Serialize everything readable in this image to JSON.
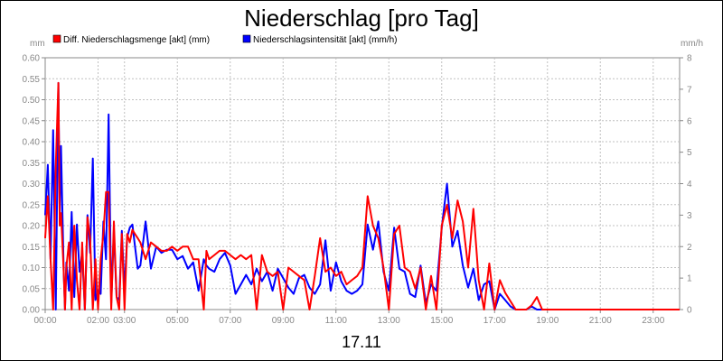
{
  "chart_data": {
    "type": "line",
    "title": "Niederschlag [pro Tag]",
    "date_label": "17.11",
    "left_unit": "mm",
    "right_unit": "mm/h",
    "ylim_left": [
      0,
      0.6
    ],
    "ylim_right": [
      0,
      8
    ],
    "left_ticks": [
      "0.00",
      "0.05",
      "0.10",
      "0.15",
      "0.20",
      "0.25",
      "0.30",
      "0.35",
      "0.40",
      "0.45",
      "0.50",
      "0.55",
      "0.60"
    ],
    "right_ticks": [
      "0",
      "1",
      "2",
      "3",
      "4",
      "5",
      "6",
      "7",
      "8"
    ],
    "x_ticks": [
      "00:00",
      "02:00",
      "03:00",
      "05:00",
      "07:00",
      "09:00",
      "11:00",
      "13:00",
      "15:00",
      "17:00",
      "19:00",
      "21:00",
      "23:00"
    ],
    "x_tick_hours": [
      0,
      2,
      3,
      5,
      7,
      9,
      11,
      13,
      15,
      17,
      19,
      21,
      23
    ],
    "xlim_hours": [
      0,
      24
    ],
    "grid": true,
    "legend_position": "top-left",
    "colors": {
      "diff": "#ff0000",
      "intensity": "#0000ff",
      "grid": "#c0c0c0",
      "axis": "#888888"
    },
    "series": [
      {
        "name": "Diff. Niederschlagsmenge [akt] (mm)",
        "axis": "left",
        "x_hours": [
          0.0,
          0.1,
          0.2,
          0.3,
          0.4,
          0.5,
          0.55,
          0.6,
          0.7,
          0.75,
          0.8,
          0.9,
          1.0,
          1.1,
          1.2,
          1.3,
          1.4,
          1.5,
          1.6,
          1.7,
          1.8,
          1.9,
          2.0,
          2.1,
          2.2,
          2.3,
          2.4,
          2.5,
          2.6,
          2.7,
          2.8,
          2.9,
          3.0,
          3.1,
          3.2,
          3.3,
          3.4,
          3.5,
          3.6,
          3.8,
          4.0,
          4.2,
          4.4,
          4.6,
          4.8,
          5.0,
          5.2,
          5.4,
          5.6,
          5.8,
          6.0,
          6.1,
          6.2,
          6.4,
          6.6,
          6.8,
          7.0,
          7.2,
          7.4,
          7.6,
          7.8,
          8.0,
          8.2,
          8.4,
          8.6,
          8.8,
          9.0,
          9.2,
          9.4,
          9.6,
          9.8,
          10.0,
          10.2,
          10.4,
          10.6,
          10.8,
          11.0,
          11.2,
          11.4,
          11.6,
          11.8,
          12.0,
          12.2,
          12.4,
          12.6,
          12.8,
          13.0,
          13.2,
          13.4,
          13.6,
          13.8,
          14.0,
          14.2,
          14.4,
          14.6,
          14.8,
          15.0,
          15.2,
          15.4,
          15.6,
          15.8,
          16.0,
          16.2,
          16.4,
          16.6,
          16.8,
          17.0,
          17.2,
          17.4,
          17.6,
          17.8,
          18.0,
          18.2,
          18.4,
          18.6,
          18.8,
          24.0
        ],
        "values": [
          0.17,
          0.27,
          0.12,
          0.0,
          0.34,
          0.54,
          0.2,
          0.23,
          0.09,
          0.0,
          0.1,
          0.16,
          0.0,
          0.2,
          0.07,
          0.0,
          0.16,
          0.0,
          0.22,
          0.17,
          0.0,
          0.12,
          0.0,
          0.12,
          0.18,
          0.28,
          0.28,
          0.0,
          0.21,
          0.03,
          0.0,
          0.18,
          0.0,
          0.18,
          0.16,
          0.19,
          0.18,
          0.17,
          0.16,
          0.12,
          0.16,
          0.15,
          0.14,
          0.14,
          0.15,
          0.14,
          0.15,
          0.15,
          0.12,
          0.12,
          0.0,
          0.14,
          0.12,
          0.13,
          0.14,
          0.14,
          0.13,
          0.12,
          0.13,
          0.12,
          0.13,
          0.0,
          0.13,
          0.09,
          0.08,
          0.09,
          0.0,
          0.1,
          0.09,
          0.08,
          0.07,
          0.0,
          0.08,
          0.17,
          0.09,
          0.1,
          0.08,
          0.09,
          0.06,
          0.07,
          0.08,
          0.1,
          0.27,
          0.2,
          0.17,
          0.1,
          0.0,
          0.18,
          0.2,
          0.1,
          0.09,
          0.05,
          0.1,
          0.0,
          0.08,
          0.0,
          0.2,
          0.25,
          0.17,
          0.26,
          0.21,
          0.1,
          0.24,
          0.07,
          0.0,
          0.11,
          0.0,
          0.07,
          0.04,
          0.02,
          0.0,
          0.0,
          0.0,
          0.01,
          0.03,
          0.0,
          0.0
        ]
      },
      {
        "name": "Niederschlagsintensität [akt] (mm/h)",
        "axis": "right",
        "x_hours": [
          0.0,
          0.1,
          0.2,
          0.3,
          0.4,
          0.5,
          0.55,
          0.6,
          0.7,
          0.75,
          0.8,
          0.9,
          1.0,
          1.1,
          1.2,
          1.3,
          1.4,
          1.5,
          1.6,
          1.7,
          1.8,
          1.9,
          2.0,
          2.1,
          2.2,
          2.3,
          2.4,
          2.5,
          2.6,
          2.7,
          2.8,
          2.9,
          3.0,
          3.1,
          3.2,
          3.3,
          3.4,
          3.5,
          3.6,
          3.8,
          4.0,
          4.2,
          4.4,
          4.6,
          4.8,
          5.0,
          5.2,
          5.4,
          5.6,
          5.8,
          6.0,
          6.1,
          6.2,
          6.4,
          6.6,
          6.8,
          7.0,
          7.2,
          7.4,
          7.6,
          7.8,
          8.0,
          8.2,
          8.4,
          8.6,
          8.8,
          9.0,
          9.2,
          9.4,
          9.6,
          9.8,
          10.0,
          10.2,
          10.4,
          10.6,
          10.8,
          11.0,
          11.2,
          11.4,
          11.6,
          11.8,
          12.0,
          12.2,
          12.4,
          12.6,
          12.8,
          13.0,
          13.2,
          13.4,
          13.6,
          13.8,
          14.0,
          14.2,
          14.4,
          14.6,
          14.8,
          15.0,
          15.2,
          15.4,
          15.6,
          15.8,
          16.0,
          16.2,
          16.4,
          16.6,
          16.8,
          17.0,
          17.2,
          17.4,
          17.6,
          17.8,
          18.0,
          18.2,
          18.4,
          18.6,
          18.8,
          24.0
        ],
        "values": [
          3.0,
          4.6,
          1.6,
          5.7,
          0.0,
          7.2,
          2.8,
          5.2,
          1.2,
          0.0,
          1.5,
          0.6,
          3.1,
          0.4,
          2.7,
          1.2,
          1.8,
          0.0,
          3.0,
          1.8,
          4.8,
          0.3,
          0.6,
          0.5,
          2.8,
          1.6,
          6.2,
          0.2,
          2.5,
          0.4,
          0.3,
          2.5,
          0.6,
          2.3,
          2.6,
          2.7,
          2.0,
          1.3,
          1.4,
          2.8,
          1.3,
          2.0,
          1.8,
          1.9,
          1.9,
          1.6,
          1.7,
          1.3,
          1.5,
          0.6,
          1.6,
          1.4,
          1.3,
          1.2,
          1.6,
          1.8,
          1.4,
          0.5,
          0.8,
          1.1,
          0.8,
          1.3,
          0.9,
          1.2,
          0.6,
          1.3,
          1.0,
          0.7,
          0.5,
          1.0,
          1.1,
          0.7,
          0.5,
          0.8,
          2.2,
          0.6,
          1.5,
          0.9,
          0.6,
          0.5,
          0.6,
          0.8,
          2.7,
          1.9,
          2.8,
          1.2,
          0.6,
          2.6,
          1.3,
          1.2,
          0.5,
          0.4,
          1.4,
          0.2,
          0.8,
          0.6,
          2.6,
          4.0,
          2.0,
          2.5,
          1.4,
          0.7,
          1.3,
          0.3,
          0.8,
          0.9,
          0.0,
          0.5,
          0.3,
          0.1,
          0.0,
          0.0,
          0.0,
          0.1,
          0.0,
          0.0,
          0.0
        ]
      }
    ]
  }
}
